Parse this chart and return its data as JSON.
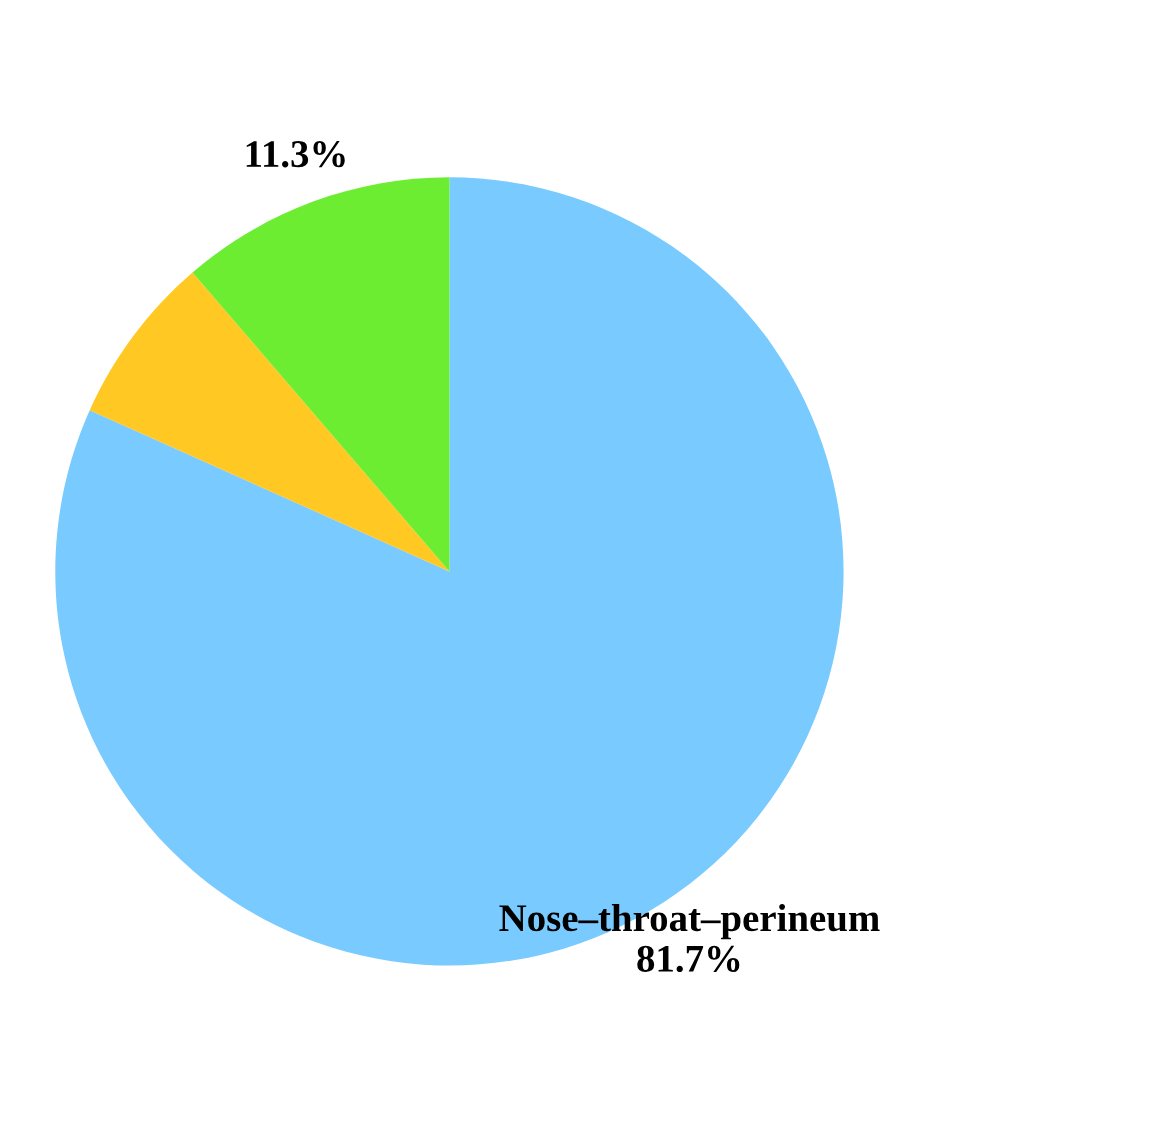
{
  "chart_data": {
    "type": "pie",
    "categories": [
      "Nose–throat–perineum",
      null,
      null
    ],
    "values": [
      81.7,
      7.0,
      11.3
    ],
    "colors": [
      "#78caff",
      "#ffc822",
      "#6ced31"
    ],
    "value_labels": [
      "81.7%",
      null,
      "11.3%"
    ]
  }
}
